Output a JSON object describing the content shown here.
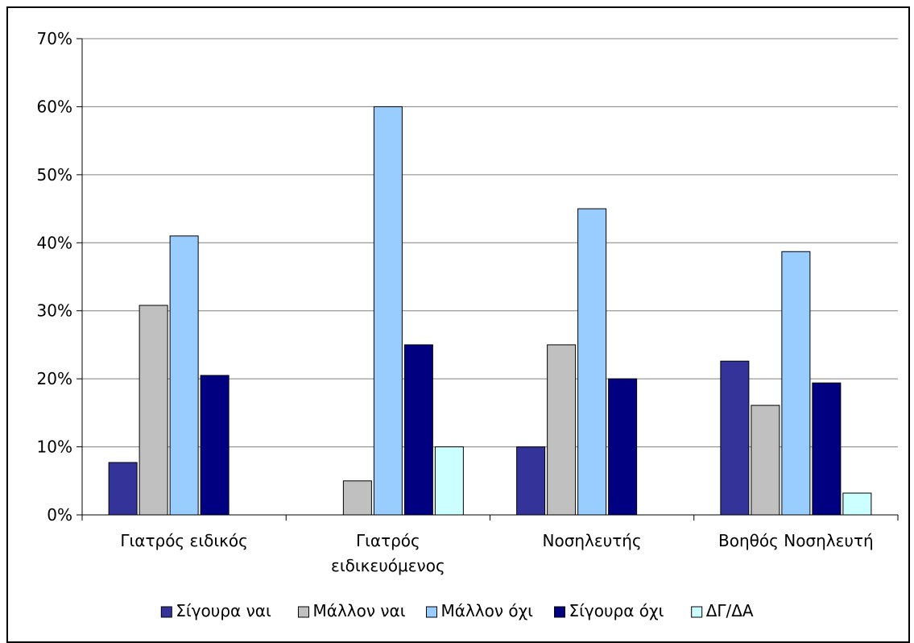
{
  "chart_data": {
    "type": "bar",
    "categories": [
      [
        "Γιατρός ειδικός"
      ],
      [
        "Γιατρός",
        "ειδικευόμενος"
      ],
      [
        "Νοσηλευτής"
      ],
      [
        "Βοηθός Νοσηλευτή"
      ]
    ],
    "series": [
      {
        "name": "Σίγουρα ναι",
        "color": "#333399",
        "values": [
          7.7,
          0,
          10,
          22.6
        ]
      },
      {
        "name": "Μάλλον ναι",
        "color": "#c0c0c0",
        "values": [
          30.8,
          5,
          25,
          16.1
        ]
      },
      {
        "name": "Μάλλον όχι",
        "color": "#99ccff",
        "values": [
          41,
          60,
          45,
          38.7
        ]
      },
      {
        "name": "Σίγουρα όχι",
        "color": "#000080",
        "values": [
          20.5,
          25,
          20,
          19.4
        ]
      },
      {
        "name": "ΔΓ/ΔΑ",
        "color": "#ccffff",
        "values": [
          0,
          10,
          0,
          3.2
        ]
      }
    ],
    "yticks": [
      "0%",
      "10%",
      "20%",
      "30%",
      "40%",
      "50%",
      "60%",
      "70%"
    ],
    "ylim": [
      0,
      70
    ],
    "ylabel": "",
    "xlabel": "",
    "title": "",
    "grid": true,
    "legend_position": "bottom"
  }
}
